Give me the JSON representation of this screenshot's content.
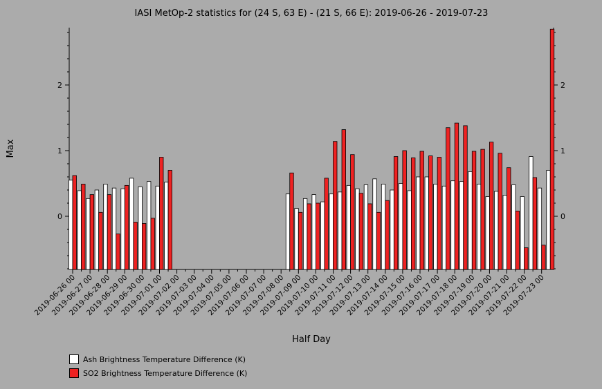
{
  "chart_data": {
    "type": "bar",
    "title": "IASI MetOp-2 statistics for (24 S, 63 E) - (21 S, 66 E): 2019-06-26 - 2019-07-23",
    "xlabel": "Half Day",
    "ylabel": "Max",
    "ylim": [
      -0.8,
      2.85
    ],
    "yticks": [
      0,
      1,
      2
    ],
    "grid": false,
    "legend_position": "bottom-left",
    "categories": [
      "2019-06-26 00",
      "2019-06-26 12",
      "2019-06-27 00",
      "2019-06-27 12",
      "2019-06-28 00",
      "2019-06-28 12",
      "2019-06-29 00",
      "2019-06-29 12",
      "2019-06-30 00",
      "2019-06-30 12",
      "2019-07-01 00",
      "2019-07-01 12",
      "2019-07-02 00",
      "2019-07-02 12",
      "2019-07-03 00",
      "2019-07-03 12",
      "2019-07-04 00",
      "2019-07-04 12",
      "2019-07-05 00",
      "2019-07-05 12",
      "2019-07-06 00",
      "2019-07-06 12",
      "2019-07-07 00",
      "2019-07-07 12",
      "2019-07-08 00",
      "2019-07-08 12",
      "2019-07-09 00",
      "2019-07-09 12",
      "2019-07-10 00",
      "2019-07-10 12",
      "2019-07-11 00",
      "2019-07-11 12",
      "2019-07-12 00",
      "2019-07-12 12",
      "2019-07-13 00",
      "2019-07-13 12",
      "2019-07-14 00",
      "2019-07-14 12",
      "2019-07-15 00",
      "2019-07-15 12",
      "2019-07-16 00",
      "2019-07-16 12",
      "2019-07-17 00",
      "2019-07-17 12",
      "2019-07-18 00",
      "2019-07-18 12",
      "2019-07-19 00",
      "2019-07-19 12",
      "2019-07-20 00",
      "2019-07-20 12",
      "2019-07-21 00",
      "2019-07-21 12",
      "2019-07-22 00",
      "2019-07-22 12",
      "2019-07-23 00"
    ],
    "tick_labels": [
      "2019-06-26 00",
      "2019-06-27 00",
      "2019-06-28 00",
      "2019-06-29 00",
      "2019-06-30 00",
      "2019-07-01 00",
      "2019-07-02 00",
      "2019-07-03 00",
      "2019-07-04 00",
      "2019-07-05 00",
      "2019-07-06 00",
      "2019-07-07 00",
      "2019-07-08 00",
      "2019-07-09 00",
      "2019-07-10 00",
      "2019-07-11 00",
      "2019-07-12 00",
      "2019-07-13 00",
      "2019-07-14 00",
      "2019-07-15 00",
      "2019-07-16 00",
      "2019-07-17 00",
      "2019-07-18 00",
      "2019-07-19 00",
      "2019-07-20 00",
      "2019-07-21 00",
      "2019-07-22 00",
      "2019-07-23 00"
    ],
    "series": [
      {
        "name": "Ash Brightness Temperature Difference (K)",
        "color": "#ffffff",
        "values": [
          0.55,
          0.39,
          0.27,
          0.4,
          0.49,
          0.43,
          0.42,
          0.58,
          0.45,
          0.53,
          0.46,
          0.52,
          null,
          null,
          null,
          null,
          null,
          null,
          null,
          null,
          null,
          null,
          null,
          null,
          null,
          0.34,
          0.12,
          0.27,
          0.33,
          0.22,
          0.34,
          0.37,
          0.47,
          0.42,
          0.48,
          0.57,
          0.49,
          0.4,
          0.5,
          0.39,
          0.6,
          0.6,
          0.49,
          0.46,
          0.54,
          0.53,
          0.68,
          0.49,
          0.3,
          0.38,
          0.32,
          0.48,
          0.3,
          0.91,
          0.43
        ]
      },
      {
        "name": "SO2 Brightness Temperature Difference (K)",
        "color": "#ee2222",
        "values": [
          0.62,
          0.49,
          0.33,
          0.06,
          0.33,
          -0.27,
          0.47,
          -0.09,
          -0.11,
          -0.03,
          0.9,
          0.7,
          null,
          null,
          null,
          null,
          null,
          null,
          null,
          null,
          null,
          null,
          null,
          null,
          null,
          0.66,
          0.06,
          0.19,
          0.2,
          0.58,
          1.14,
          1.32,
          0.94,
          0.35,
          0.19,
          0.06,
          0.24,
          0.91,
          1.0,
          0.89,
          0.99,
          0.92,
          0.9,
          1.35,
          1.42,
          1.38,
          0.99,
          1.02,
          1.13,
          0.96,
          0.74,
          0.08,
          -0.48,
          0.59,
          -0.44
        ]
      }
    ],
    "extra_bar": {
      "category": "2019-07-23 12",
      "series": "Ash Brightness Temperature Difference (K)",
      "value": 0.7,
      "so2_value": 2.85
    },
    "axis_labels": {
      "y_left": [
        "0",
        "1",
        "2"
      ],
      "y_right": [
        "0",
        "1",
        "2"
      ]
    }
  }
}
